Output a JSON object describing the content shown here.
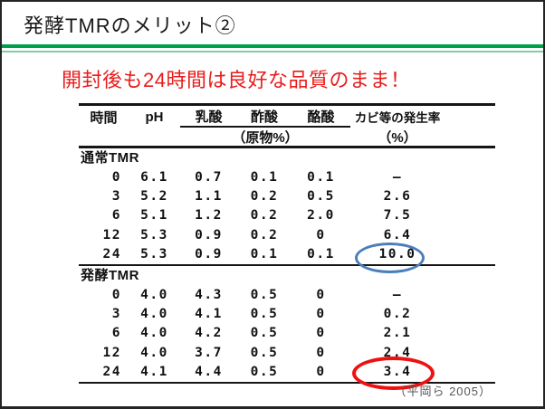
{
  "slide": {
    "title": "発酵TMRのメリット②",
    "subtitle": "開封後も24時間は良好な品質のまま！",
    "citation": "（平岡ら 2005）",
    "colors": {
      "title_text": "#1a1a1a",
      "subtitle_red": "#e81c1c",
      "divider_green_dark": "#00a04a",
      "divider_green_light": "#7dcf9e",
      "table_rule": "#151515",
      "highlight_blue": "#4a7ebb",
      "highlight_red": "#ee1111",
      "citation_gray": "#555555"
    }
  },
  "chart_data": {
    "type": "table",
    "headers": {
      "time": "時間",
      "ph": "pH",
      "lactic": "乳酸",
      "acetic": "酢酸",
      "butyric": "酪酸",
      "acids_unit": "（原物%）",
      "mold": "カビ等の発生率",
      "mold_unit": "（%）"
    },
    "columns": [
      "時間",
      "pH",
      "乳酸",
      "酢酸",
      "酪酸",
      "カビ等の発生率"
    ],
    "sections": [
      {
        "label": "通常TMR",
        "rows": [
          [
            "0",
            "6.1",
            "0.7",
            "0.1",
            "0.1",
            "—"
          ],
          [
            "3",
            "5.2",
            "1.1",
            "0.2",
            "0.5",
            "2.6"
          ],
          [
            "6",
            "5.1",
            "1.2",
            "0.2",
            "2.0",
            "7.5"
          ],
          [
            "12",
            "5.3",
            "0.9",
            "0.2",
            "0",
            "6.4"
          ],
          [
            "24",
            "5.3",
            "0.9",
            "0.1",
            "0.1",
            "10.0"
          ]
        ]
      },
      {
        "label": "発酵TMR",
        "rows": [
          [
            "0",
            "4.0",
            "4.3",
            "0.5",
            "0",
            "—"
          ],
          [
            "3",
            "4.0",
            "4.1",
            "0.5",
            "0",
            "0.2"
          ],
          [
            "6",
            "4.0",
            "4.2",
            "0.5",
            "0",
            "2.1"
          ],
          [
            "12",
            "4.0",
            "3.7",
            "0.5",
            "0",
            "2.4"
          ],
          [
            "24",
            "4.1",
            "4.4",
            "0.5",
            "0",
            "3.4"
          ]
        ]
      }
    ],
    "annotations": [
      {
        "shape": "ellipse",
        "color": "#4a7ebb",
        "value": "10.0",
        "target": "通常TMR 24時間 カビ等の発生率"
      },
      {
        "shape": "ellipse",
        "color": "#ee1111",
        "value": "3.4",
        "target": "発酵TMR 24時間 カビ等の発生率"
      }
    ]
  }
}
